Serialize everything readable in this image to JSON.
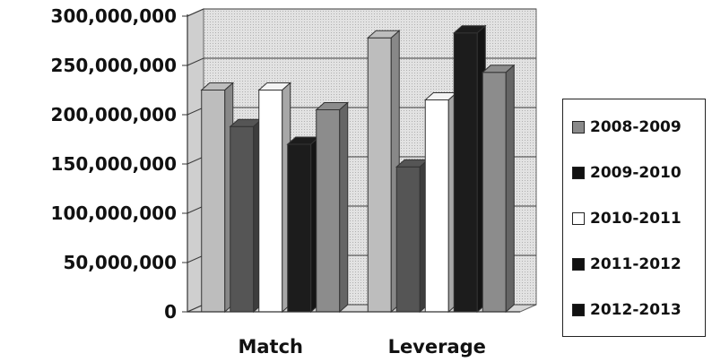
{
  "chart_data": {
    "type": "bar",
    "categories": [
      "Match",
      "Leverage"
    ],
    "series": [
      {
        "name": "2008-2009",
        "values": [
          225000000,
          278000000
        ],
        "color": "#bdbdbd",
        "swatch": "#8a8a8a"
      },
      {
        "name": "2009-2010",
        "values": [
          188000000,
          147000000
        ],
        "color": "#555555",
        "swatch": "#111111"
      },
      {
        "name": "2010-2011",
        "values": [
          225000000,
          215000000
        ],
        "color": "#ffffff",
        "swatch": "#ffffff"
      },
      {
        "name": "2011-2012",
        "values": [
          170000000,
          283000000
        ],
        "color": "#1c1c1c",
        "swatch": "#111111"
      },
      {
        "name": "2012-2013",
        "values": [
          205000000,
          243000000
        ],
        "color": "#8c8c8c",
        "swatch": "#111111"
      }
    ],
    "ylim": [
      0,
      300000000
    ],
    "yticks": [
      {
        "value": 0,
        "label": "0"
      },
      {
        "value": 50000000,
        "label": "50,000,000"
      },
      {
        "value": 100000000,
        "label": "100,000,000"
      },
      {
        "value": 150000000,
        "label": "150,000,000"
      },
      {
        "value": 200000000,
        "label": "200,000,000"
      },
      {
        "value": 250000000,
        "label": "250,000,000"
      },
      {
        "value": 300000000,
        "label": "300,000,000"
      }
    ],
    "grid": true,
    "legend_position": "right",
    "style": "3d-clustered-column"
  }
}
